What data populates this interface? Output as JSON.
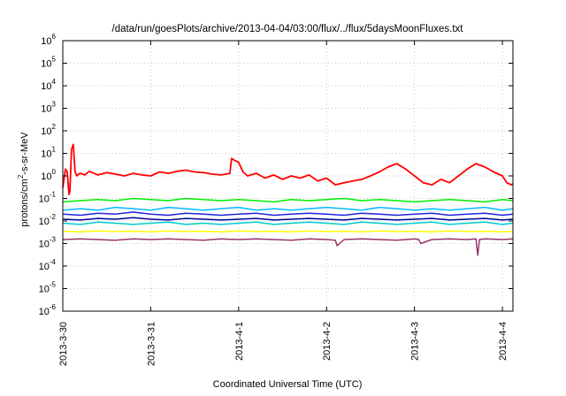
{
  "chart_data": {
    "type": "line",
    "title": "/data/run/goesPlots/archive/2013-04-04/03:00/flux/../flux/5daysMoonFluxes.txt",
    "xlabel": "Coordinated Universal Time (UTC)",
    "ylabel": {
      "prefix": "protons/cm",
      "superscript": "2",
      "suffix": "-s-sr-MeV"
    },
    "yscale": "log",
    "ylim": [
      1e-06,
      1000000
    ],
    "xlim": [
      0,
      5.12
    ],
    "grid": true,
    "x_ticks": [
      {
        "value": 0,
        "label": "2013-3-30"
      },
      {
        "value": 1,
        "label": "2013-3-31"
      },
      {
        "value": 2,
        "label": "2013-4-1"
      },
      {
        "value": 3,
        "label": "2013-4-2"
      },
      {
        "value": 4,
        "label": "2013-4-3"
      },
      {
        "value": 5,
        "label": "2013-4-4"
      }
    ],
    "y_ticks": [
      {
        "value": 1e-06,
        "base": "10",
        "exponent": "-6"
      },
      {
        "value": 1e-05,
        "base": "10",
        "exponent": "-5"
      },
      {
        "value": 0.0001,
        "base": "10",
        "exponent": "-4"
      },
      {
        "value": 0.001,
        "base": "10",
        "exponent": "-3"
      },
      {
        "value": 0.01,
        "base": "10",
        "exponent": "-2"
      },
      {
        "value": 0.1,
        "base": "10",
        "exponent": "-1"
      },
      {
        "value": 1,
        "base": "10",
        "exponent": "0"
      },
      {
        "value": 10,
        "base": "10",
        "exponent": "1"
      },
      {
        "value": 100,
        "base": "10",
        "exponent": "2"
      },
      {
        "value": 1000,
        "base": "10",
        "exponent": "3"
      },
      {
        "value": 10000,
        "base": "10",
        "exponent": "4"
      },
      {
        "value": 100000,
        "base": "10",
        "exponent": "5"
      },
      {
        "value": 1000000,
        "base": "10",
        "exponent": "6"
      }
    ],
    "series": [
      {
        "color": "#ff0000",
        "x": [
          0,
          0.03,
          0.05,
          0.07,
          0.08,
          0.1,
          0.12,
          0.14,
          0.16,
          0.18,
          0.2,
          0.25,
          0.3,
          0.4,
          0.5,
          0.6,
          0.7,
          0.8,
          0.9,
          1.0,
          1.1,
          1.2,
          1.3,
          1.4,
          1.5,
          1.6,
          1.7,
          1.8,
          1.9,
          1.92,
          1.95,
          2.0,
          2.05,
          2.1,
          2.2,
          2.3,
          2.4,
          2.5,
          2.6,
          2.7,
          2.8,
          2.9,
          3.0,
          3.1,
          3.2,
          3.3,
          3.4,
          3.5,
          3.6,
          3.7,
          3.8,
          3.9,
          4.0,
          4.1,
          4.2,
          4.3,
          4.4,
          4.5,
          4.6,
          4.7,
          4.8,
          4.9,
          5.0,
          5.05,
          5.1,
          5.12
        ],
        "y": [
          0.3,
          2.0,
          1.5,
          0.15,
          0.2,
          15,
          25,
          1.5,
          1.0,
          1.2,
          1.3,
          1.1,
          1.6,
          1.1,
          1.4,
          1.2,
          1.0,
          1.3,
          1.1,
          1.0,
          1.5,
          1.3,
          1.6,
          1.8,
          1.5,
          1.4,
          1.2,
          1.1,
          1.3,
          6.0,
          5.0,
          4.0,
          1.5,
          1.0,
          1.3,
          0.8,
          1.1,
          0.7,
          1.0,
          0.8,
          1.1,
          0.6,
          0.8,
          0.4,
          0.5,
          0.6,
          0.7,
          1.0,
          1.5,
          2.5,
          3.5,
          2.0,
          1.0,
          0.5,
          0.4,
          0.7,
          0.5,
          1.0,
          2.0,
          3.5,
          2.5,
          1.5,
          1.0,
          0.5,
          0.4,
          0.45
        ]
      },
      {
        "color": "#00ee00",
        "x": [
          0,
          0.2,
          0.4,
          0.6,
          0.8,
          1.0,
          1.2,
          1.4,
          1.6,
          1.8,
          2.0,
          2.2,
          2.4,
          2.6,
          2.8,
          3.0,
          3.2,
          3.4,
          3.6,
          3.8,
          4.0,
          4.2,
          4.4,
          4.6,
          4.8,
          5.0,
          5.12
        ],
        "y": [
          0.07,
          0.08,
          0.09,
          0.08,
          0.1,
          0.09,
          0.08,
          0.1,
          0.09,
          0.08,
          0.09,
          0.08,
          0.07,
          0.09,
          0.08,
          0.09,
          0.1,
          0.08,
          0.09,
          0.08,
          0.07,
          0.08,
          0.09,
          0.08,
          0.07,
          0.09,
          0.08
        ]
      },
      {
        "color": "#00bbff",
        "x": [
          0,
          0.2,
          0.4,
          0.6,
          0.8,
          1.0,
          1.2,
          1.4,
          1.6,
          1.8,
          2.0,
          2.2,
          2.4,
          2.6,
          2.8,
          3.0,
          3.2,
          3.4,
          3.6,
          3.8,
          4.0,
          4.2,
          4.4,
          4.6,
          4.8,
          5.0,
          5.12
        ],
        "y": [
          0.03,
          0.035,
          0.03,
          0.04,
          0.035,
          0.03,
          0.04,
          0.035,
          0.03,
          0.035,
          0.04,
          0.03,
          0.035,
          0.03,
          0.035,
          0.04,
          0.035,
          0.03,
          0.04,
          0.035,
          0.03,
          0.035,
          0.03,
          0.035,
          0.04,
          0.03,
          0.035
        ]
      },
      {
        "color": "#2222dd",
        "x": [
          0,
          0.2,
          0.4,
          0.6,
          0.8,
          1.0,
          1.2,
          1.4,
          1.6,
          1.8,
          2.0,
          2.2,
          2.4,
          2.6,
          2.8,
          3.0,
          3.2,
          3.4,
          3.6,
          3.8,
          4.0,
          4.2,
          4.4,
          4.6,
          4.8,
          5.0,
          5.12
        ],
        "y": [
          0.02,
          0.018,
          0.022,
          0.02,
          0.025,
          0.02,
          0.018,
          0.022,
          0.02,
          0.018,
          0.02,
          0.022,
          0.018,
          0.02,
          0.022,
          0.02,
          0.018,
          0.022,
          0.02,
          0.018,
          0.02,
          0.022,
          0.018,
          0.02,
          0.022,
          0.018,
          0.02
        ]
      },
      {
        "color": "#000099",
        "x": [
          0,
          0.2,
          0.4,
          0.6,
          0.8,
          1.0,
          1.2,
          1.4,
          1.6,
          1.8,
          2.0,
          2.2,
          2.4,
          2.6,
          2.8,
          3.0,
          3.2,
          3.4,
          3.6,
          3.8,
          4.0,
          4.2,
          4.4,
          4.6,
          4.8,
          5.0,
          5.12
        ],
        "y": [
          0.012,
          0.011,
          0.013,
          0.012,
          0.014,
          0.012,
          0.011,
          0.013,
          0.012,
          0.011,
          0.012,
          0.013,
          0.011,
          0.012,
          0.013,
          0.012,
          0.011,
          0.013,
          0.012,
          0.011,
          0.012,
          0.013,
          0.011,
          0.012,
          0.013,
          0.011,
          0.012
        ]
      },
      {
        "color": "#00cccc",
        "x": [
          0,
          0.2,
          0.4,
          0.6,
          0.8,
          1.0,
          1.2,
          1.4,
          1.6,
          1.8,
          2.0,
          2.2,
          2.4,
          2.6,
          2.8,
          3.0,
          3.2,
          3.4,
          3.6,
          3.8,
          4.0,
          4.2,
          4.4,
          4.6,
          4.8,
          5.0,
          5.12
        ],
        "y": [
          0.008,
          0.007,
          0.009,
          0.008,
          0.007,
          0.008,
          0.009,
          0.007,
          0.008,
          0.007,
          0.008,
          0.009,
          0.007,
          0.008,
          0.009,
          0.008,
          0.007,
          0.009,
          0.008,
          0.007,
          0.008,
          0.009,
          0.007,
          0.008,
          0.009,
          0.007,
          0.008
        ]
      },
      {
        "color": "#ffff00",
        "x": [
          0,
          0.2,
          0.4,
          0.6,
          0.8,
          1.0,
          1.2,
          1.4,
          1.6,
          1.8,
          2.0,
          2.2,
          2.4,
          2.6,
          2.8,
          3.0,
          3.2,
          3.4,
          3.6,
          3.8,
          4.0,
          4.2,
          4.4,
          4.6,
          4.8,
          5.0,
          5.12
        ],
        "y": [
          0.0035,
          0.0033,
          0.0036,
          0.0034,
          0.0035,
          0.0033,
          0.0036,
          0.0034,
          0.0035,
          0.0033,
          0.0036,
          0.0034,
          0.0035,
          0.0033,
          0.0036,
          0.0034,
          0.0035,
          0.0033,
          0.0036,
          0.0034,
          0.0035,
          0.0033,
          0.0036,
          0.0034,
          0.0035,
          0.0033,
          0.0035
        ]
      },
      {
        "color": "#993366",
        "x": [
          0,
          0.2,
          0.4,
          0.6,
          0.8,
          1.0,
          1.2,
          1.4,
          1.6,
          1.8,
          2.0,
          2.2,
          2.4,
          2.6,
          2.8,
          3.0,
          3.1,
          3.12,
          3.2,
          3.4,
          3.6,
          3.8,
          4.0,
          4.05,
          4.07,
          4.2,
          4.4,
          4.6,
          4.7,
          4.72,
          4.74,
          4.8,
          5.0,
          5.12
        ],
        "y": [
          0.0015,
          0.0016,
          0.0015,
          0.0014,
          0.0016,
          0.0015,
          0.0016,
          0.0015,
          0.0014,
          0.0016,
          0.0015,
          0.0016,
          0.0015,
          0.0014,
          0.0016,
          0.0015,
          0.0014,
          0.0008,
          0.0015,
          0.0016,
          0.0015,
          0.0014,
          0.0016,
          0.0015,
          0.001,
          0.0015,
          0.0016,
          0.0015,
          0.0016,
          0.0003,
          0.0015,
          0.0016,
          0.0015,
          0.0016
        ]
      }
    ]
  }
}
